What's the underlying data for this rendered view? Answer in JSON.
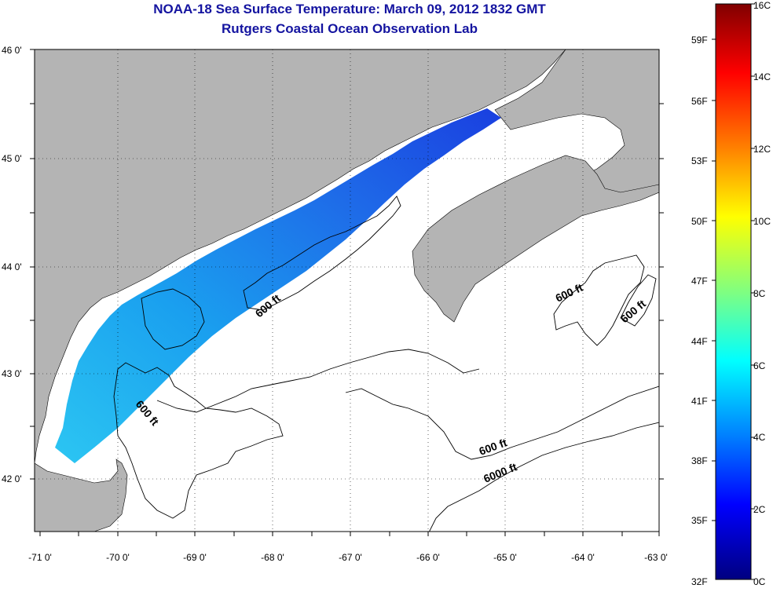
{
  "header": {
    "title": "NOAA-18 Sea Surface Temperature:  March 09, 2012 1832 GMT",
    "subtitle": "Rutgers Coastal Ocean Observation Lab"
  },
  "axes": {
    "lon_ticks": [
      "-71 0'",
      "-70 0'",
      "-69 0'",
      "-68 0'",
      "-67 0'",
      "-66 0'",
      "-65 0'",
      "-64 0'",
      "-63 0'"
    ],
    "lat_ticks": [
      "46 0'",
      "45 0'",
      "44 0'",
      "43 0'",
      "42 0'"
    ]
  },
  "contours": {
    "labels": [
      "600 ft",
      "600 ft",
      "600 ft",
      "600 ft",
      "600 ft",
      "6000 ft"
    ]
  },
  "colorbar": {
    "celsius": [
      "16C",
      "14C",
      "12C",
      "10C",
      "8C",
      "6C",
      "4C",
      "2C",
      "0C"
    ],
    "fahrenheit": [
      "59F",
      "56F",
      "53F",
      "50F",
      "47F",
      "44F",
      "41F",
      "38F",
      "35F",
      "32F"
    ],
    "colors": [
      "#800000",
      "#ff0000",
      "#ff8000",
      "#ffff00",
      "#80ff80",
      "#00ffff",
      "#0080ff",
      "#0000ff",
      "#000080"
    ]
  },
  "colors": {
    "land": "#b4b4b4",
    "water": "#ffffff",
    "sst_warm": "#1fb2ef",
    "sst_cold": "#1a3fe0"
  }
}
